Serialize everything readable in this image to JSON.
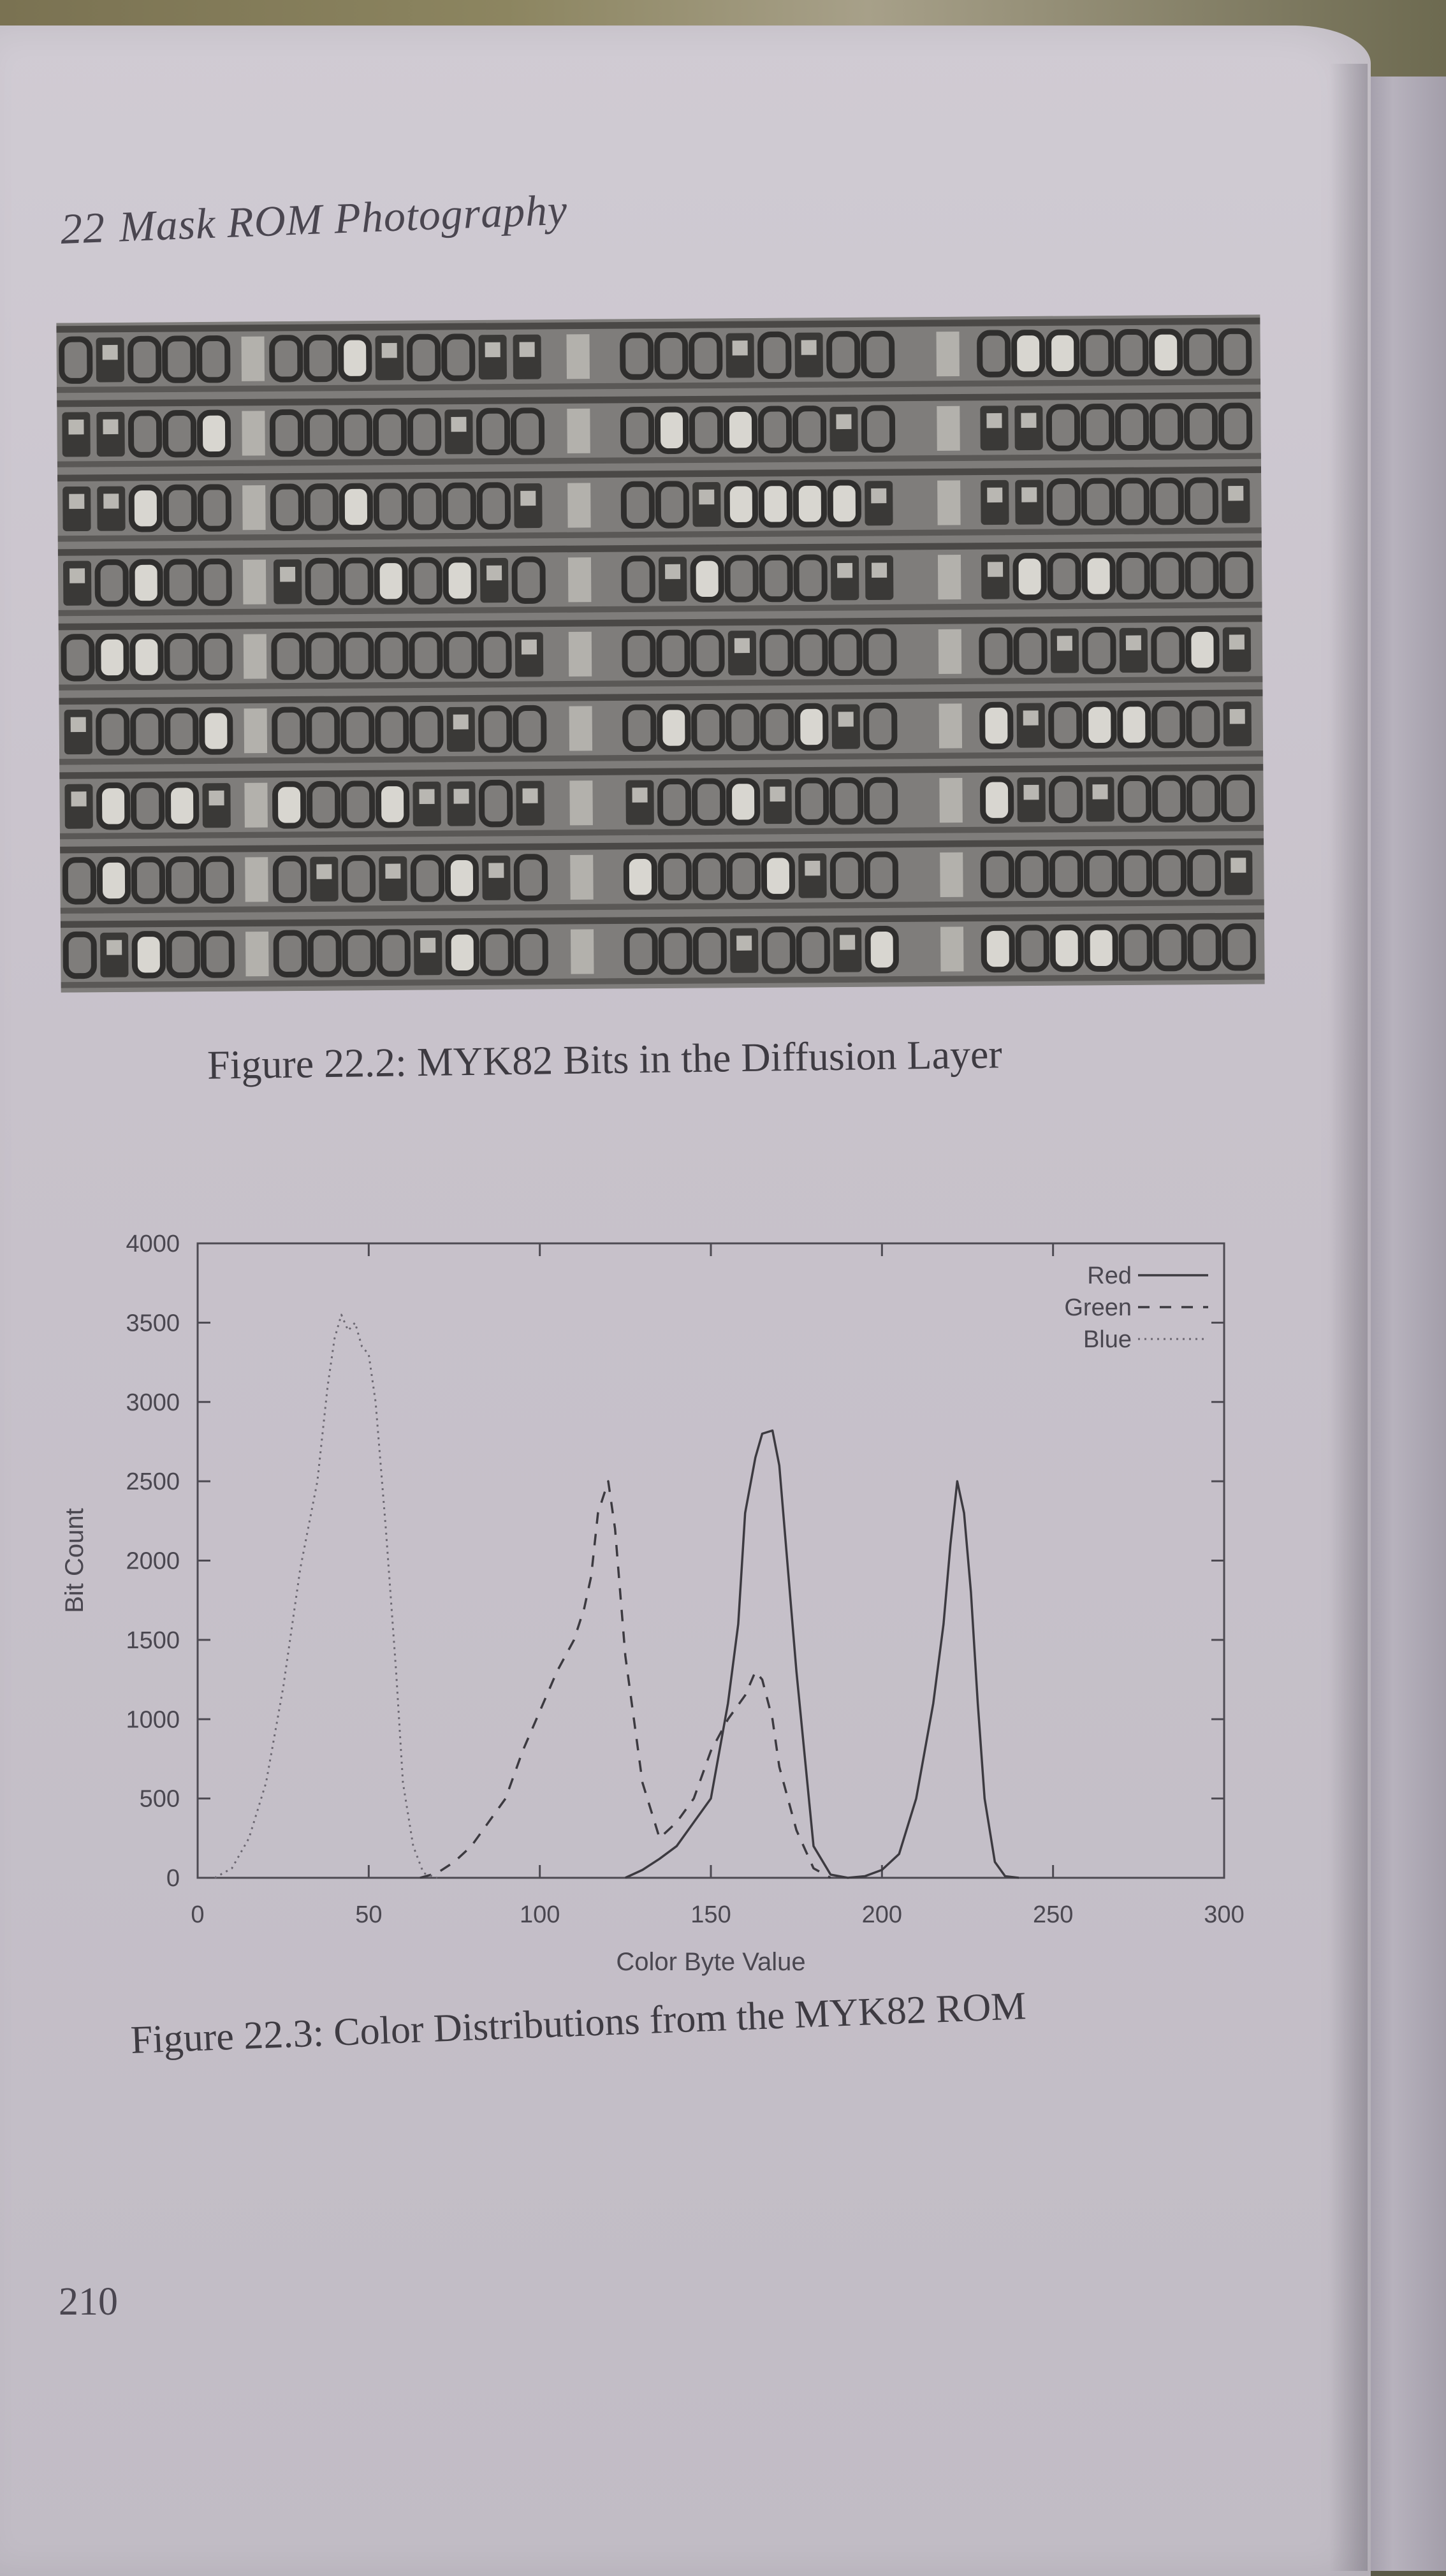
{
  "header": {
    "chapter_number": "22",
    "chapter_title": "Mask ROM Photography"
  },
  "figure1": {
    "caption": "Figure 22.2: MYK82 Bits in the Diffusion Layer"
  },
  "figure2": {
    "caption": "Figure 22.3: Color Distributions from the MYK82 ROM"
  },
  "folio": "210",
  "chart_data": {
    "type": "line",
    "title": "",
    "xlabel": "Color Byte Value",
    "ylabel": "Bit Count",
    "xlim": [
      0,
      300
    ],
    "ylim": [
      0,
      4000
    ],
    "xticks": [
      0,
      50,
      100,
      150,
      200,
      250,
      300
    ],
    "yticks": [
      0,
      500,
      1000,
      1500,
      2000,
      2500,
      3000,
      3500,
      4000
    ],
    "grid": false,
    "legend_position": "top-right",
    "series": [
      {
        "name": "Red",
        "style": "solid",
        "x": [
          125,
          130,
          135,
          140,
          145,
          150,
          155,
          158,
          160,
          163,
          165,
          168,
          170,
          175,
          180,
          185,
          190,
          195,
          200,
          205,
          210,
          215,
          218,
          220,
          222,
          224,
          226,
          228,
          230,
          233,
          236,
          240
        ],
        "y": [
          0,
          50,
          120,
          200,
          350,
          500,
          1100,
          1600,
          2300,
          2650,
          2800,
          2820,
          2600,
          1300,
          200,
          20,
          0,
          10,
          50,
          150,
          500,
          1100,
          1600,
          2100,
          2500,
          2300,
          1800,
          1100,
          500,
          100,
          10,
          0
        ]
      },
      {
        "name": "Green",
        "style": "dashed",
        "x": [
          65,
          70,
          75,
          80,
          85,
          90,
          95,
          100,
          105,
          110,
          113,
          115,
          117,
          120,
          122,
          125,
          130,
          135,
          140,
          145,
          150,
          155,
          160,
          163,
          165,
          168,
          170,
          175,
          180,
          185
        ],
        "y": [
          0,
          30,
          100,
          200,
          350,
          500,
          800,
          1050,
          1300,
          1500,
          1700,
          1900,
          2300,
          2500,
          2200,
          1400,
          600,
          250,
          350,
          500,
          800,
          1000,
          1150,
          1300,
          1250,
          1000,
          700,
          300,
          60,
          0
        ]
      },
      {
        "name": "Blue",
        "style": "dotted",
        "x": [
          5,
          10,
          15,
          20,
          25,
          30,
          35,
          38,
          40,
          42,
          44,
          46,
          48,
          50,
          52,
          55,
          58,
          60,
          63,
          66,
          70
        ],
        "y": [
          0,
          60,
          250,
          600,
          1200,
          1950,
          2500,
          3100,
          3400,
          3550,
          3450,
          3500,
          3350,
          3300,
          3000,
          2200,
          1300,
          600,
          200,
          30,
          0
        ]
      }
    ]
  }
}
